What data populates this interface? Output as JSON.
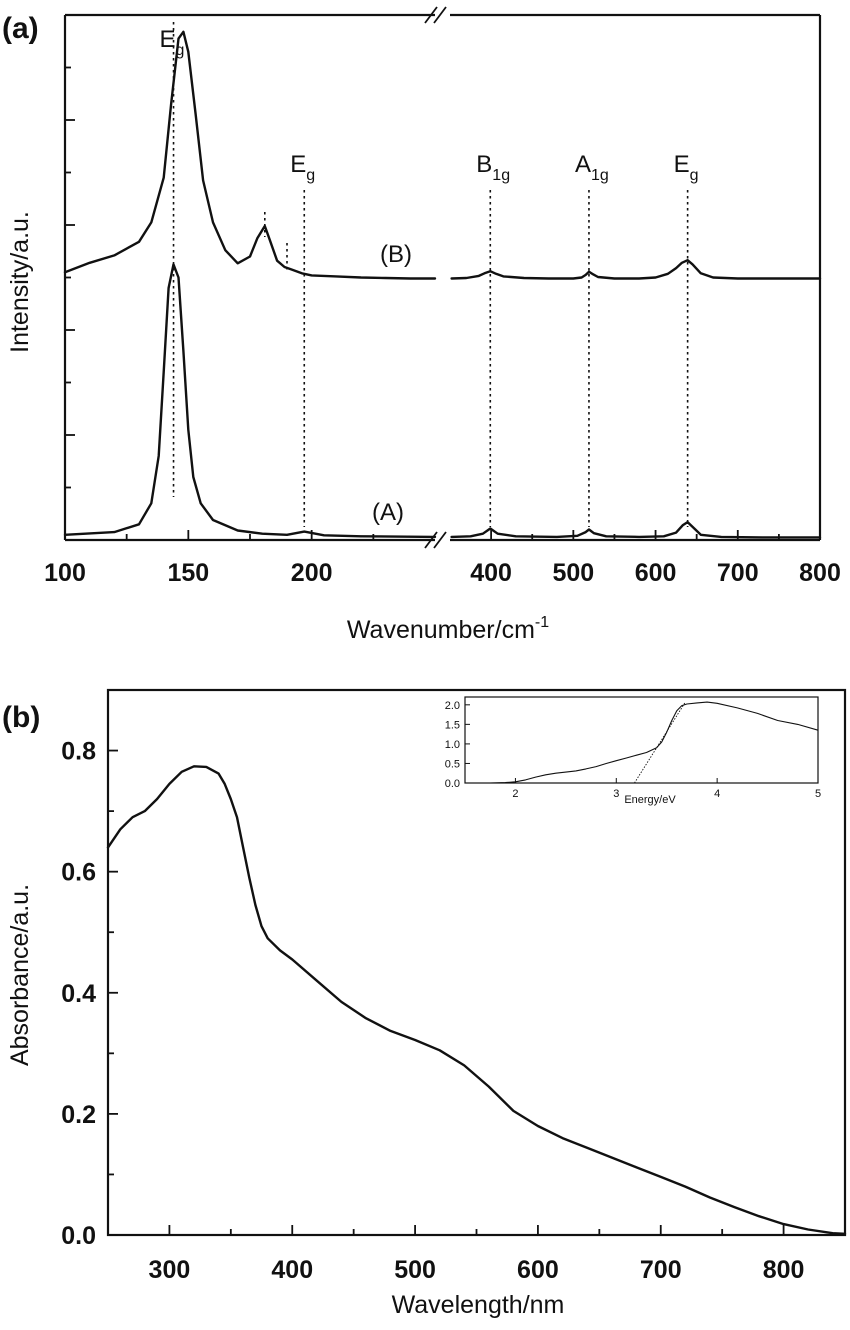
{
  "panel_a": {
    "label": "(a)",
    "xlabel_main": "Wavenumber/cm",
    "xlabel_sup": "-1",
    "ylabel": "Intensity/a.u.",
    "series_labels": [
      "(B)",
      "(A)"
    ],
    "peak_labels": [
      {
        "main": "E",
        "sub": "g",
        "x": 144
      },
      {
        "main": "E",
        "sub": "g",
        "x": 197
      },
      {
        "main": "B",
        "sub": "1g",
        "x": 399
      },
      {
        "main": "A",
        "sub": "1g",
        "x": 519
      },
      {
        "main": "E",
        "sub": "g",
        "x": 639
      }
    ]
  },
  "panel_b": {
    "label": "(b)",
    "xlabel": "Wavelength/nm",
    "ylabel": "Absorbance/a.u.",
    "inset_xlabel": "Energy/eV"
  },
  "chart_data": [
    {
      "type": "line",
      "panel": "(a)",
      "xlabel": "Wavenumber/cm-1",
      "ylabel": "Intensity/a.u.",
      "x_axis": "broken",
      "segments": [
        {
          "xlim": [
            100,
            250
          ],
          "ticks": [
            100,
            150,
            200
          ]
        },
        {
          "xlim": [
            350,
            800
          ],
          "ticks": [
            400,
            500,
            600,
            700,
            800
          ]
        }
      ],
      "ylim": [
        0,
        10
      ],
      "series": [
        {
          "name": "(B)",
          "x": [
            100,
            110,
            120,
            130,
            135,
            140,
            143,
            146,
            148,
            150,
            153,
            156,
            160,
            165,
            170,
            175,
            178,
            181,
            183,
            186,
            189,
            192,
            196,
            200,
            210,
            220,
            230,
            240,
            250,
            352,
            370,
            385,
            392,
            399,
            406,
            415,
            440,
            470,
            500,
            510,
            515,
            519,
            523,
            530,
            550,
            580,
            600,
            615,
            625,
            632,
            639,
            645,
            655,
            670,
            700,
            750,
            800
          ],
          "y": [
            5.1,
            5.28,
            5.42,
            5.68,
            6.05,
            6.9,
            8.3,
            9.55,
            9.68,
            9.3,
            8.1,
            6.85,
            6.05,
            5.52,
            5.27,
            5.4,
            5.75,
            5.98,
            5.72,
            5.32,
            5.2,
            5.15,
            5.08,
            5.04,
            5.02,
            5.0,
            4.99,
            4.98,
            4.98,
            4.98,
            4.99,
            5.03,
            5.08,
            5.12,
            5.07,
            5.02,
            4.99,
            4.98,
            4.98,
            5.0,
            5.05,
            5.11,
            5.07,
            5.01,
            4.98,
            4.98,
            5.0,
            5.07,
            5.18,
            5.28,
            5.33,
            5.25,
            5.08,
            5.0,
            4.98,
            4.98,
            4.98
          ]
        },
        {
          "name": "(A)",
          "x": [
            100,
            120,
            130,
            135,
            138,
            140,
            142,
            144,
            146,
            148,
            150,
            152,
            155,
            160,
            170,
            180,
            190,
            197,
            205,
            220,
            250,
            352,
            375,
            390,
            399,
            408,
            430,
            480,
            505,
            515,
            519,
            525,
            540,
            580,
            610,
            625,
            633,
            639,
            645,
            655,
            680,
            730,
            800
          ],
          "y": [
            0.1,
            0.15,
            0.3,
            0.7,
            1.6,
            3.2,
            4.8,
            5.25,
            5.0,
            3.6,
            2.1,
            1.2,
            0.7,
            0.38,
            0.18,
            0.12,
            0.1,
            0.16,
            0.09,
            0.07,
            0.06,
            0.06,
            0.07,
            0.12,
            0.22,
            0.12,
            0.07,
            0.06,
            0.08,
            0.15,
            0.2,
            0.13,
            0.07,
            0.06,
            0.07,
            0.14,
            0.28,
            0.34,
            0.25,
            0.1,
            0.06,
            0.05,
            0.05
          ]
        }
      ],
      "reference_lines": [
        144,
        181,
        190,
        197,
        399,
        519,
        639
      ]
    },
    {
      "type": "line",
      "panel": "(b)",
      "xlabel": "Wavelength/nm",
      "ylabel": "Absorbance/a.u.",
      "xlim": [
        250,
        850
      ],
      "ylim": [
        0,
        0.9
      ],
      "xticks": [
        300,
        400,
        500,
        600,
        700,
        800
      ],
      "yticks": [
        0.0,
        0.2,
        0.4,
        0.6,
        0.8
      ],
      "series": [
        {
          "x": [
            250,
            260,
            270,
            280,
            290,
            300,
            310,
            320,
            330,
            340,
            345,
            350,
            355,
            360,
            365,
            370,
            375,
            380,
            390,
            400,
            420,
            440,
            460,
            480,
            500,
            520,
            540,
            560,
            580,
            600,
            620,
            640,
            660,
            680,
            700,
            720,
            740,
            760,
            780,
            800,
            820,
            840,
            850
          ],
          "y": [
            0.64,
            0.67,
            0.69,
            0.7,
            0.72,
            0.745,
            0.765,
            0.774,
            0.773,
            0.762,
            0.745,
            0.72,
            0.69,
            0.64,
            0.59,
            0.545,
            0.51,
            0.49,
            0.47,
            0.455,
            0.42,
            0.385,
            0.358,
            0.337,
            0.322,
            0.305,
            0.28,
            0.245,
            0.205,
            0.18,
            0.16,
            0.144,
            0.128,
            0.112,
            0.096,
            0.08,
            0.062,
            0.046,
            0.031,
            0.018,
            0.009,
            0.003,
            0.002
          ]
        }
      ]
    },
    {
      "type": "line",
      "panel": "(b) inset",
      "xlabel": "Energy/eV",
      "ylabel": "",
      "xlim": [
        1.5,
        5.0
      ],
      "ylim": [
        0.0,
        2.2
      ],
      "xticks": [
        2,
        3,
        4,
        5
      ],
      "yticks": [
        0.0,
        0.5,
        1.0,
        1.5,
        2.0
      ],
      "series": [
        {
          "x": [
            1.75,
            1.9,
            2.0,
            2.1,
            2.2,
            2.3,
            2.4,
            2.5,
            2.6,
            2.7,
            2.8,
            2.9,
            3.0,
            3.1,
            3.2,
            3.3,
            3.4,
            3.45,
            3.5,
            3.55,
            3.6,
            3.65,
            3.7,
            3.8,
            3.9,
            4.0,
            4.2,
            4.4,
            4.6,
            4.8,
            5.0
          ],
          "y": [
            0.0,
            0.01,
            0.03,
            0.08,
            0.15,
            0.21,
            0.25,
            0.28,
            0.31,
            0.36,
            0.42,
            0.5,
            0.57,
            0.64,
            0.71,
            0.78,
            0.9,
            1.05,
            1.3,
            1.6,
            1.85,
            1.98,
            2.02,
            2.05,
            2.07,
            2.04,
            1.92,
            1.78,
            1.6,
            1.5,
            1.35
          ]
        },
        {
          "name": "tangent",
          "x": [
            3.18,
            3.68
          ],
          "y": [
            0.0,
            2.05
          ]
        }
      ]
    }
  ]
}
